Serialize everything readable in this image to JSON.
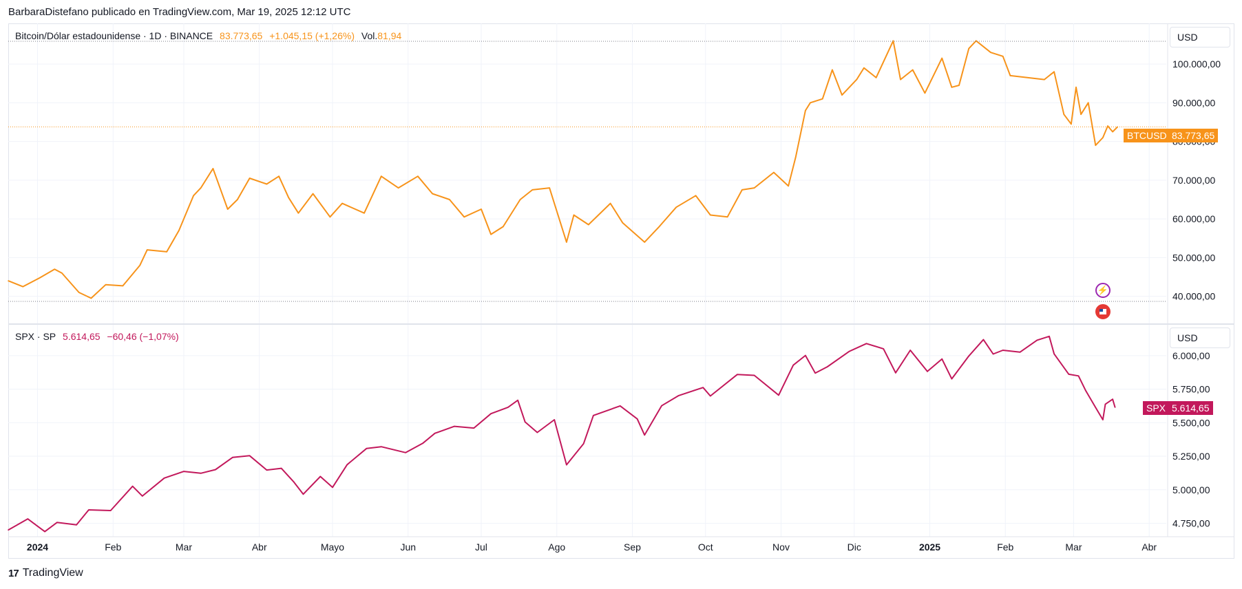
{
  "header": {
    "credit": "BarbaraDistefano publicado en TradingView.com, Mar 19, 2025 12:12 UTC"
  },
  "footer": {
    "brand": "TradingView"
  },
  "colors": {
    "btc": "#f7931a",
    "spx": "#c2185b",
    "grid": "#f0f3fa",
    "text": "#131722"
  },
  "btc_pane": {
    "legend": {
      "symbol": "Bitcoin/Dólar estadounidense · 1D · BINANCE",
      "price": "83.773,65",
      "change": "+1.045,15 (+1,26%)",
      "vol_label": "Vol.",
      "vol_value": "81,94"
    },
    "currency": "USD",
    "tag_name": "BTCUSD",
    "tag_price": "83.773,65"
  },
  "spx_pane": {
    "legend": {
      "symbol": "SPX · SP",
      "price": "5.614,65",
      "change": "−60,46 (−1,07%)"
    },
    "currency": "USD",
    "tag_name": "SPX",
    "tag_price": "5.614,65"
  },
  "chart_data": [
    {
      "type": "line",
      "name": "BTCUSD",
      "x_unit": "date",
      "ylim": [
        33000,
        110000
      ],
      "y_ticks": [
        40000,
        50000,
        60000,
        70000,
        80000,
        90000,
        100000
      ],
      "y_tick_labels": [
        "40.000,00",
        "50.000,00",
        "60.000,00",
        "70.000,00",
        "80.000,00",
        "90.000,00",
        "100.000,00"
      ],
      "points": [
        [
          "2023-12-20",
          44000
        ],
        [
          "2023-12-26",
          42500
        ],
        [
          "2024-01-02",
          44800
        ],
        [
          "2024-01-08",
          47000
        ],
        [
          "2024-01-11",
          46000
        ],
        [
          "2024-01-18",
          41000
        ],
        [
          "2024-01-23",
          39500
        ],
        [
          "2024-01-29",
          43000
        ],
        [
          "2024-02-05",
          42700
        ],
        [
          "2024-02-12",
          48000
        ],
        [
          "2024-02-15",
          52000
        ],
        [
          "2024-02-23",
          51500
        ],
        [
          "2024-02-28",
          57000
        ],
        [
          "2024-03-05",
          66000
        ],
        [
          "2024-03-08",
          68000
        ],
        [
          "2024-03-13",
          73000
        ],
        [
          "2024-03-19",
          62500
        ],
        [
          "2024-03-23",
          65000
        ],
        [
          "2024-03-28",
          70500
        ],
        [
          "2024-04-04",
          69000
        ],
        [
          "2024-04-09",
          71000
        ],
        [
          "2024-04-13",
          65500
        ],
        [
          "2024-04-17",
          61500
        ],
        [
          "2024-04-23",
          66500
        ],
        [
          "2024-04-30",
          60500
        ],
        [
          "2024-05-05",
          64000
        ],
        [
          "2024-05-14",
          61500
        ],
        [
          "2024-05-21",
          71000
        ],
        [
          "2024-05-28",
          68000
        ],
        [
          "2024-06-05",
          71000
        ],
        [
          "2024-06-11",
          66500
        ],
        [
          "2024-06-18",
          65000
        ],
        [
          "2024-06-24",
          60500
        ],
        [
          "2024-07-01",
          62500
        ],
        [
          "2024-07-05",
          56000
        ],
        [
          "2024-07-10",
          58000
        ],
        [
          "2024-07-17",
          65000
        ],
        [
          "2024-07-22",
          67500
        ],
        [
          "2024-07-29",
          68000
        ],
        [
          "2024-08-05",
          54000
        ],
        [
          "2024-08-08",
          61000
        ],
        [
          "2024-08-14",
          58500
        ],
        [
          "2024-08-23",
          64000
        ],
        [
          "2024-08-28",
          59000
        ],
        [
          "2024-09-06",
          54000
        ],
        [
          "2024-09-12",
          58000
        ],
        [
          "2024-09-19",
          63000
        ],
        [
          "2024-09-27",
          66000
        ],
        [
          "2024-10-03",
          61000
        ],
        [
          "2024-10-10",
          60500
        ],
        [
          "2024-10-16",
          67500
        ],
        [
          "2024-10-21",
          68000
        ],
        [
          "2024-10-29",
          72000
        ],
        [
          "2024-11-04",
          68500
        ],
        [
          "2024-11-07",
          76000
        ],
        [
          "2024-11-11",
          88000
        ],
        [
          "2024-11-13",
          90000
        ],
        [
          "2024-11-18",
          91000
        ],
        [
          "2024-11-22",
          98500
        ],
        [
          "2024-11-26",
          92000
        ],
        [
          "2024-12-02",
          96000
        ],
        [
          "2024-12-05",
          99000
        ],
        [
          "2024-12-10",
          96500
        ],
        [
          "2024-12-17",
          106000
        ],
        [
          "2024-12-20",
          96000
        ],
        [
          "2024-12-25",
          98500
        ],
        [
          "2024-12-30",
          92500
        ],
        [
          "2025-01-06",
          101500
        ],
        [
          "2025-01-10",
          94000
        ],
        [
          "2025-01-13",
          94500
        ],
        [
          "2025-01-17",
          104000
        ],
        [
          "2025-01-20",
          106000
        ],
        [
          "2025-01-26",
          103000
        ],
        [
          "2025-01-31",
          102000
        ],
        [
          "2025-02-03",
          97000
        ],
        [
          "2025-02-10",
          96500
        ],
        [
          "2025-02-17",
          96000
        ],
        [
          "2025-02-21",
          98000
        ],
        [
          "2025-02-25",
          87000
        ],
        [
          "2025-02-28",
          84500
        ],
        [
          "2025-03-02",
          94000
        ],
        [
          "2025-03-04",
          87000
        ],
        [
          "2025-03-07",
          90000
        ],
        [
          "2025-03-10",
          79000
        ],
        [
          "2025-03-13",
          81000
        ],
        [
          "2025-03-15",
          84000
        ],
        [
          "2025-03-17",
          82500
        ],
        [
          "2025-03-19",
          83773.65
        ]
      ]
    },
    {
      "type": "line",
      "name": "SPX",
      "x_unit": "date",
      "ylim": [
        4650,
        6200
      ],
      "y_ticks": [
        4750,
        5000,
        5250,
        5500,
        5750,
        6000
      ],
      "y_tick_labels": [
        "4.750,00",
        "5.000,00",
        "5.250,00",
        "5.500,00",
        "5.750,00",
        "6.000,00"
      ],
      "points": [
        [
          "2023-12-20",
          4700
        ],
        [
          "2023-12-28",
          4783
        ],
        [
          "2024-01-04",
          4688
        ],
        [
          "2024-01-09",
          4756
        ],
        [
          "2024-01-17",
          4739
        ],
        [
          "2024-01-22",
          4850
        ],
        [
          "2024-01-31",
          4845
        ],
        [
          "2024-02-09",
          5026
        ],
        [
          "2024-02-13",
          4953
        ],
        [
          "2024-02-22",
          5087
        ],
        [
          "2024-03-01",
          5137
        ],
        [
          "2024-03-08",
          5123
        ],
        [
          "2024-03-14",
          5150
        ],
        [
          "2024-03-21",
          5241
        ],
        [
          "2024-03-28",
          5254
        ],
        [
          "2024-04-04",
          5147
        ],
        [
          "2024-04-10",
          5160
        ],
        [
          "2024-04-15",
          5061
        ],
        [
          "2024-04-19",
          4967
        ],
        [
          "2024-04-26",
          5099
        ],
        [
          "2024-05-01",
          5018
        ],
        [
          "2024-05-07",
          5187
        ],
        [
          "2024-05-15",
          5308
        ],
        [
          "2024-05-21",
          5321
        ],
        [
          "2024-05-31",
          5277
        ],
        [
          "2024-06-07",
          5346
        ],
        [
          "2024-06-12",
          5421
        ],
        [
          "2024-06-20",
          5473
        ],
        [
          "2024-06-28",
          5460
        ],
        [
          "2024-07-05",
          5567
        ],
        [
          "2024-07-12",
          5615
        ],
        [
          "2024-07-16",
          5667
        ],
        [
          "2024-07-19",
          5505
        ],
        [
          "2024-07-24",
          5427
        ],
        [
          "2024-07-31",
          5522
        ],
        [
          "2024-08-05",
          5186
        ],
        [
          "2024-08-12",
          5344
        ],
        [
          "2024-08-16",
          5554
        ],
        [
          "2024-08-27",
          5625
        ],
        [
          "2024-09-03",
          5528
        ],
        [
          "2024-09-06",
          5408
        ],
        [
          "2024-09-13",
          5626
        ],
        [
          "2024-09-20",
          5702
        ],
        [
          "2024-09-30",
          5762
        ],
        [
          "2024-10-03",
          5699
        ],
        [
          "2024-10-14",
          5859
        ],
        [
          "2024-10-21",
          5853
        ],
        [
          "2024-10-31",
          5705
        ],
        [
          "2024-11-06",
          5929
        ],
        [
          "2024-11-11",
          6001
        ],
        [
          "2024-11-15",
          5870
        ],
        [
          "2024-11-20",
          5917
        ],
        [
          "2024-11-29",
          6032
        ],
        [
          "2024-12-06",
          6090
        ],
        [
          "2024-12-13",
          6051
        ],
        [
          "2024-12-18",
          5872
        ],
        [
          "2024-12-24",
          6040
        ],
        [
          "2024-12-31",
          5882
        ],
        [
          "2025-01-06",
          5975
        ],
        [
          "2025-01-10",
          5827
        ],
        [
          "2025-01-17",
          5997
        ],
        [
          "2025-01-23",
          6119
        ],
        [
          "2025-01-27",
          6012
        ],
        [
          "2025-01-31",
          6040
        ],
        [
          "2025-02-07",
          6026
        ],
        [
          "2025-02-14",
          6115
        ],
        [
          "2025-02-19",
          6144
        ],
        [
          "2025-02-21",
          6013
        ],
        [
          "2025-02-27",
          5861
        ],
        [
          "2025-03-03",
          5849
        ],
        [
          "2025-03-06",
          5738
        ],
        [
          "2025-03-10",
          5614
        ],
        [
          "2025-03-13",
          5522
        ],
        [
          "2025-03-14",
          5638
        ],
        [
          "2025-03-17",
          5675
        ],
        [
          "2025-03-18",
          5614.65
        ]
      ]
    }
  ],
  "x_axis": {
    "labels": [
      {
        "text": "2024",
        "date": "2024-01-01",
        "bold": true
      },
      {
        "text": "Feb",
        "date": "2024-02-01",
        "bold": false
      },
      {
        "text": "Mar",
        "date": "2024-03-01",
        "bold": false
      },
      {
        "text": "Abr",
        "date": "2024-04-01",
        "bold": false
      },
      {
        "text": "Mayo",
        "date": "2024-05-01",
        "bold": false
      },
      {
        "text": "Jun",
        "date": "2024-06-01",
        "bold": false
      },
      {
        "text": "Jul",
        "date": "2024-07-01",
        "bold": false
      },
      {
        "text": "Ago",
        "date": "2024-08-01",
        "bold": false
      },
      {
        "text": "Sep",
        "date": "2024-09-01",
        "bold": false
      },
      {
        "text": "Oct",
        "date": "2024-10-01",
        "bold": false
      },
      {
        "text": "Nov",
        "date": "2024-11-01",
        "bold": false
      },
      {
        "text": "Dic",
        "date": "2024-12-01",
        "bold": false
      },
      {
        "text": "2025",
        "date": "2025-01-01",
        "bold": true
      },
      {
        "text": "Feb",
        "date": "2025-02-01",
        "bold": false
      },
      {
        "text": "Mar",
        "date": "2025-03-01",
        "bold": false
      },
      {
        "text": "Abr",
        "date": "2025-04-01",
        "bold": false
      }
    ]
  },
  "icons": {
    "event_icon": "lightning-icon",
    "flag_icon": "us-flag-icon"
  }
}
